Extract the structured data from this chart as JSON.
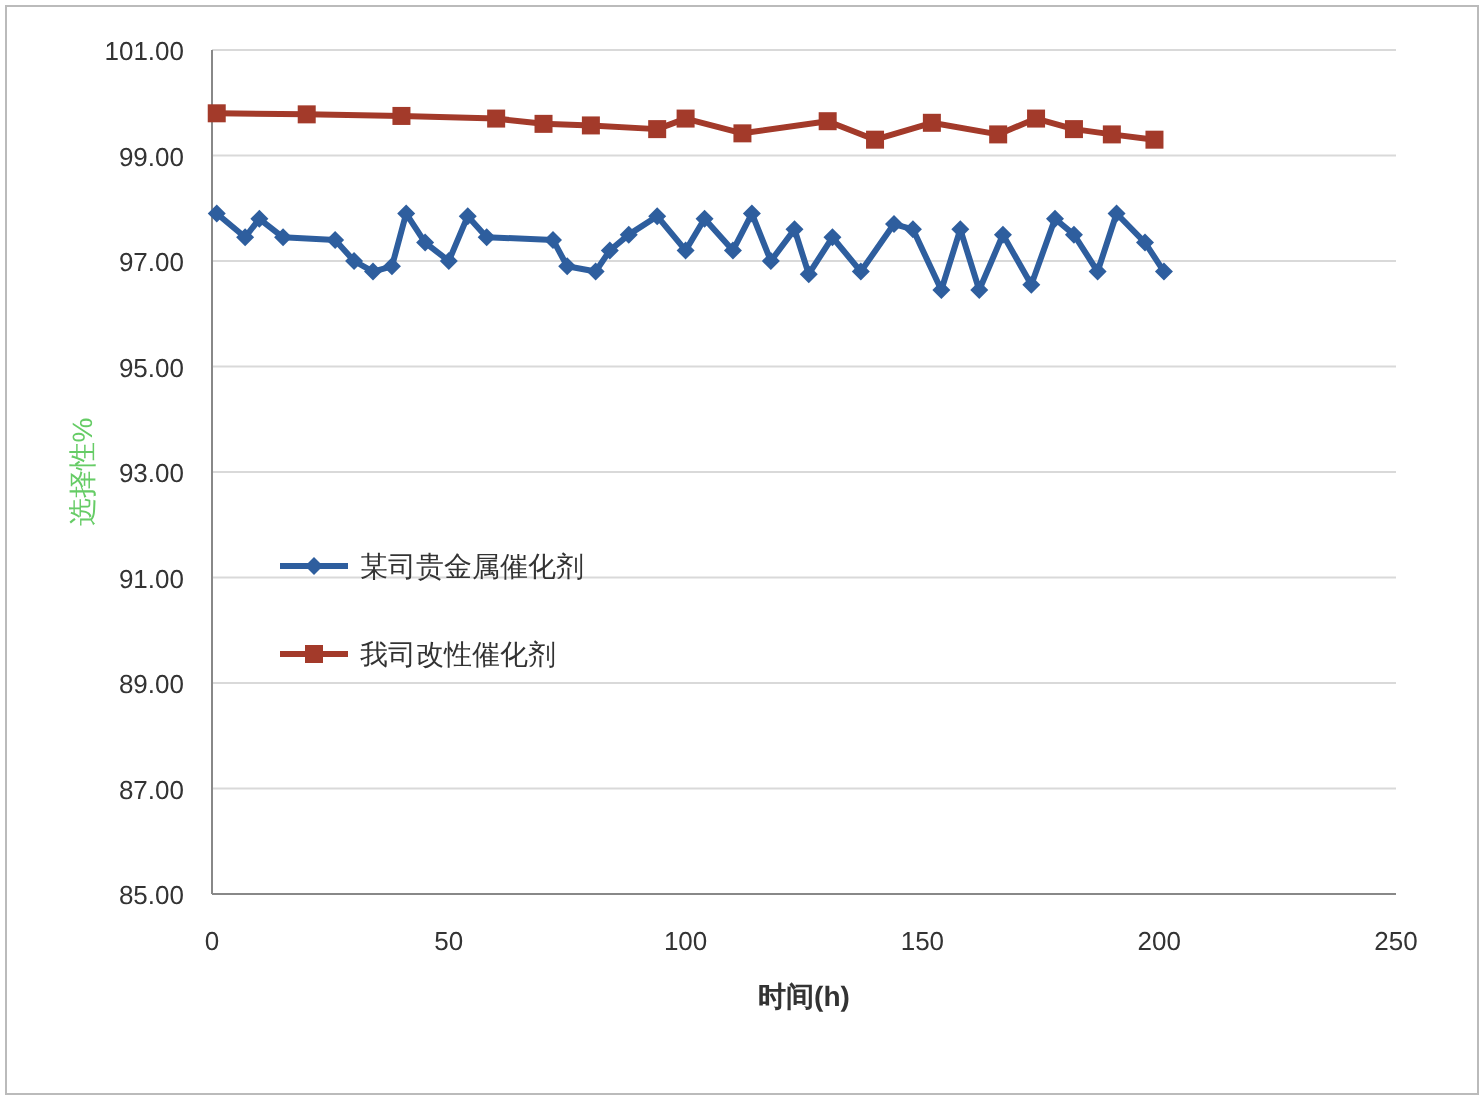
{
  "chart_data": {
    "type": "line",
    "xlabel": "时间(h)",
    "ylabel": "选择性%",
    "xlim": [
      0,
      250
    ],
    "xticks": [
      0,
      50,
      100,
      150,
      200,
      250
    ],
    "ylim": [
      85,
      101
    ],
    "yticks": [
      {
        "value": 85,
        "label": "85.00"
      },
      {
        "value": 87,
        "label": "87.00"
      },
      {
        "value": 89,
        "label": "89.00"
      },
      {
        "value": 91,
        "label": "91.00"
      },
      {
        "value": 93,
        "label": "93.00"
      },
      {
        "value": 95,
        "label": "95.00"
      },
      {
        "value": 97,
        "label": "97.00"
      },
      {
        "value": 99,
        "label": "99.00"
      },
      {
        "value": 101,
        "label": "101.00"
      }
    ],
    "grid": "y",
    "legend": "left",
    "line_style": "solid",
    "series": [
      {
        "name": "某司贵金属催化剂",
        "color": "#2e5e9e",
        "marker": "diamond",
        "x": [
          1,
          7,
          10,
          15,
          26,
          30,
          34,
          38,
          41,
          45,
          50,
          54,
          58,
          72,
          75,
          81,
          84,
          88,
          94,
          100,
          104,
          110,
          114,
          118,
          123,
          126,
          131,
          137,
          144,
          148,
          154,
          158,
          162,
          167,
          173,
          178,
          182,
          187,
          191,
          197,
          201
        ],
        "values": [
          97.9,
          97.45,
          97.8,
          97.45,
          97.4,
          97.0,
          96.8,
          96.9,
          97.9,
          97.35,
          97.0,
          97.85,
          97.45,
          97.4,
          96.9,
          96.8,
          97.2,
          97.5,
          97.85,
          97.2,
          97.8,
          97.2,
          97.9,
          97.0,
          97.6,
          96.75,
          97.45,
          96.8,
          97.7,
          97.6,
          96.45,
          97.6,
          96.45,
          97.5,
          96.55,
          97.8,
          97.5,
          96.8,
          97.9,
          97.35,
          96.8
        ]
      },
      {
        "name": "我司改性催化剂",
        "color": "#a33a2a",
        "marker": "square",
        "x": [
          1,
          20,
          40,
          60,
          70,
          80,
          94,
          100,
          112,
          130,
          140,
          152,
          166,
          174,
          182,
          190,
          199
        ],
        "values": [
          99.8,
          99.78,
          99.75,
          99.7,
          99.6,
          99.57,
          99.5,
          99.7,
          99.42,
          99.65,
          99.3,
          99.62,
          99.4,
          99.7,
          99.5,
          99.4,
          99.3
        ]
      }
    ]
  }
}
